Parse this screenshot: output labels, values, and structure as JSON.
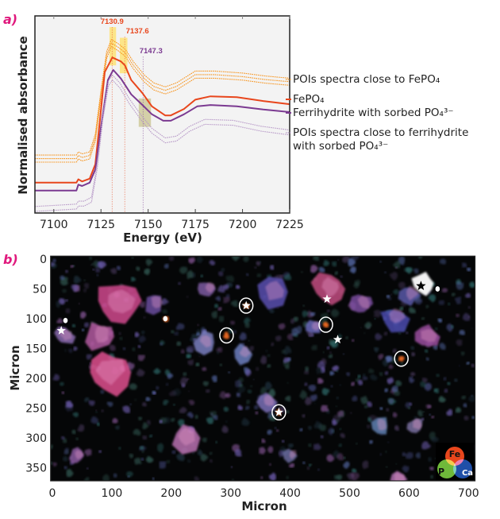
{
  "chart_data": [
    {
      "type": "line",
      "panel_label": "a)",
      "xlabel": "Energy (eV)",
      "ylabel": "Normalised absorbance",
      "xlim": [
        7090,
        7225
      ],
      "ylim": [
        0,
        1
      ],
      "y_ticks_shown": false,
      "xticks": [
        7100,
        7125,
        7150,
        7175,
        7200,
        7225
      ],
      "background": "#f3f3f3",
      "legend": [
        {
          "text": "POIs spectra close to FePO₄",
          "color": "#f7941d",
          "style": "dotted"
        },
        {
          "text": "FePO₄",
          "color": "#e8461c",
          "style": "solid"
        },
        {
          "text": "Ferrihydrite with sorbed PO₄³⁻",
          "color": "#7b3a91",
          "style": "solid"
        },
        {
          "text": "POIs spectra close to ferrihydrite",
          "text2": "with sorbed PO₄³⁻",
          "color": "#b89ac8",
          "style": "dotted"
        }
      ],
      "series": [
        {
          "legend_index": 0,
          "color": "#f7941d",
          "style": "dotted",
          "points": [
            [
              7090,
              0.294
            ],
            [
              7112,
              0.294
            ],
            [
              7113,
              0.31
            ],
            [
              7115,
              0.3
            ],
            [
              7119,
              0.31
            ],
            [
              7122,
              0.4
            ],
            [
              7125,
              0.62
            ],
            [
              7128,
              0.82
            ],
            [
              7130.5,
              0.88
            ],
            [
              7134,
              0.86
            ],
            [
              7138,
              0.83
            ],
            [
              7142,
              0.77
            ],
            [
              7148,
              0.7
            ],
            [
              7153,
              0.66
            ],
            [
              7159,
              0.64
            ],
            [
              7165,
              0.66
            ],
            [
              7175,
              0.72
            ],
            [
              7185,
              0.72
            ],
            [
              7200,
              0.71
            ],
            [
              7212,
              0.695
            ],
            [
              7225,
              0.684
            ]
          ]
        },
        {
          "legend_index": 0,
          "color": "#f7941d",
          "style": "dotted",
          "points": [
            [
              7090,
              0.276
            ],
            [
              7112,
              0.276
            ],
            [
              7113,
              0.292
            ],
            [
              7115,
              0.282
            ],
            [
              7119,
              0.292
            ],
            [
              7122,
              0.382
            ],
            [
              7125,
              0.602
            ],
            [
              7128,
              0.802
            ],
            [
              7130.5,
              0.862
            ],
            [
              7134,
              0.842
            ],
            [
              7138,
              0.812
            ],
            [
              7142,
              0.752
            ],
            [
              7148,
              0.682
            ],
            [
              7153,
              0.642
            ],
            [
              7159,
              0.622
            ],
            [
              7165,
              0.642
            ],
            [
              7175,
              0.702
            ],
            [
              7185,
              0.702
            ],
            [
              7200,
              0.692
            ],
            [
              7212,
              0.677
            ],
            [
              7225,
              0.666
            ]
          ]
        },
        {
          "legend_index": 0,
          "color": "#f7941d",
          "style": "dotted",
          "points": [
            [
              7090,
              0.258
            ],
            [
              7112,
              0.258
            ],
            [
              7113,
              0.274
            ],
            [
              7115,
              0.264
            ],
            [
              7119,
              0.274
            ],
            [
              7122,
              0.364
            ],
            [
              7125,
              0.584
            ],
            [
              7128,
              0.784
            ],
            [
              7130.5,
              0.844
            ],
            [
              7134,
              0.824
            ],
            [
              7138,
              0.794
            ],
            [
              7142,
              0.734
            ],
            [
              7148,
              0.664
            ],
            [
              7153,
              0.624
            ],
            [
              7159,
              0.604
            ],
            [
              7165,
              0.624
            ],
            [
              7175,
              0.684
            ],
            [
              7185,
              0.684
            ],
            [
              7200,
              0.674
            ],
            [
              7212,
              0.659
            ],
            [
              7225,
              0.648
            ]
          ]
        },
        {
          "legend_index": 1,
          "color": "#e8461c",
          "style": "solid",
          "points": [
            [
              7090,
              0.154
            ],
            [
              7112,
              0.154
            ],
            [
              7113,
              0.171
            ],
            [
              7115,
              0.16
            ],
            [
              7119,
              0.174
            ],
            [
              7122,
              0.247
            ],
            [
              7124.5,
              0.475
            ],
            [
              7127,
              0.715
            ],
            [
              7131,
              0.789
            ],
            [
              7135.6,
              0.769
            ],
            [
              7137.7,
              0.749
            ],
            [
              7141,
              0.675
            ],
            [
              7147,
              0.608
            ],
            [
              7152,
              0.541
            ],
            [
              7159,
              0.495
            ],
            [
              7162,
              0.495
            ],
            [
              7169,
              0.528
            ],
            [
              7175,
              0.575
            ],
            [
              7183,
              0.592
            ],
            [
              7197,
              0.588
            ],
            [
              7211,
              0.568
            ],
            [
              7225,
              0.552
            ]
          ]
        },
        {
          "legend_index": 2,
          "color": "#7b3a91",
          "style": "solid",
          "points": [
            [
              7090,
              0.114
            ],
            [
              7112,
              0.114
            ],
            [
              7113,
              0.144
            ],
            [
              7115,
              0.137
            ],
            [
              7119,
              0.154
            ],
            [
              7122,
              0.221
            ],
            [
              7125,
              0.435
            ],
            [
              7128.7,
              0.675
            ],
            [
              7131.5,
              0.726
            ],
            [
              7135.6,
              0.682
            ],
            [
              7141,
              0.602
            ],
            [
              7147,
              0.548
            ],
            [
              7152,
              0.501
            ],
            [
              7158,
              0.468
            ],
            [
              7162,
              0.468
            ],
            [
              7169,
              0.501
            ],
            [
              7176,
              0.541
            ],
            [
              7183,
              0.548
            ],
            [
              7197,
              0.541
            ],
            [
              7211,
              0.525
            ],
            [
              7225,
              0.512
            ]
          ]
        },
        {
          "legend_index": 3,
          "color": "#b89ac8",
          "style": "dotted",
          "points": [
            [
              7090,
              0.033
            ],
            [
              7112,
              0.045
            ],
            [
              7113,
              0.06
            ],
            [
              7116,
              0.06
            ],
            [
              7120,
              0.08
            ],
            [
              7123,
              0.25
            ],
            [
              7126,
              0.5
            ],
            [
              7129,
              0.67
            ],
            [
              7131,
              0.7
            ],
            [
              7135,
              0.66
            ],
            [
              7140,
              0.58
            ],
            [
              7146,
              0.5
            ],
            [
              7152,
              0.43
            ],
            [
              7159,
              0.381
            ],
            [
              7165,
              0.39
            ],
            [
              7172,
              0.44
            ],
            [
              7180,
              0.475
            ],
            [
              7195,
              0.47
            ],
            [
              7210,
              0.44
            ],
            [
              7225,
              0.421
            ]
          ]
        },
        {
          "legend_index": 3,
          "color": "#b89ac8",
          "style": "dotted",
          "points": [
            [
              7090,
              0.008
            ],
            [
              7112,
              0.02
            ],
            [
              7113,
              0.035
            ],
            [
              7116,
              0.035
            ],
            [
              7120,
              0.055
            ],
            [
              7123,
              0.225
            ],
            [
              7126,
              0.475
            ],
            [
              7129,
              0.645
            ],
            [
              7131,
              0.675
            ],
            [
              7135,
              0.635
            ],
            [
              7140,
              0.555
            ],
            [
              7146,
              0.475
            ],
            [
              7152,
              0.405
            ],
            [
              7159,
              0.356
            ],
            [
              7165,
              0.365
            ],
            [
              7172,
              0.415
            ],
            [
              7180,
              0.45
            ],
            [
              7195,
              0.445
            ],
            [
              7210,
              0.415
            ],
            [
              7225,
              0.396
            ]
          ]
        }
      ],
      "peak_labels": [
        {
          "text": "7130.9",
          "energy": 7130.9,
          "color": "#e8461c"
        },
        {
          "text": "7137.6",
          "energy": 7137.6,
          "color": "#e8461c"
        },
        {
          "text": "7147.3",
          "energy": 7147.3,
          "color": "#7b3a91"
        }
      ],
      "highlight_regions": [
        {
          "x": [
            7129.5,
            7133
          ],
          "y": [
            0.749,
            0.943
          ],
          "color": "#ffe066"
        },
        {
          "x": [
            7135,
            7139
          ],
          "y": [
            0.709,
            0.889
          ],
          "color": "#ffe066"
        },
        {
          "x": [
            7145,
            7151.5
          ],
          "y": [
            0.437,
            0.581
          ],
          "color": "#c9c48f"
        }
      ]
    },
    {
      "type": "image",
      "panel_label": "b)",
      "xlabel": "Micron",
      "ylabel": "Micron",
      "xlim": [
        0,
        700
      ],
      "ylim": [
        0,
        375
      ],
      "xticks": [
        0,
        100,
        200,
        300,
        400,
        500,
        600,
        700
      ],
      "yticks": [
        0,
        50,
        100,
        150,
        200,
        250,
        300,
        350
      ],
      "markers": {
        "circles": [
          [
            326,
            78
          ],
          [
            293,
            128
          ],
          [
            460,
            110
          ],
          [
            587,
            167
          ],
          [
            381,
            257
          ]
        ],
        "white_stars": [
          [
            326,
            78
          ],
          [
            381,
            257
          ],
          [
            462,
            67
          ],
          [
            15,
            120
          ],
          [
            480,
            135
          ]
        ],
        "black_stars": [
          [
            620,
            45
          ]
        ],
        "white_dots": [
          [
            22,
            103
          ],
          [
            190,
            100
          ],
          [
            648,
            50
          ]
        ]
      },
      "color_legend": [
        {
          "label": "Fe",
          "color": "#e8461c"
        },
        {
          "label": "P",
          "color": "#6fb93a"
        },
        {
          "label": "Ca",
          "color": "#1f4fa8"
        }
      ]
    }
  ]
}
